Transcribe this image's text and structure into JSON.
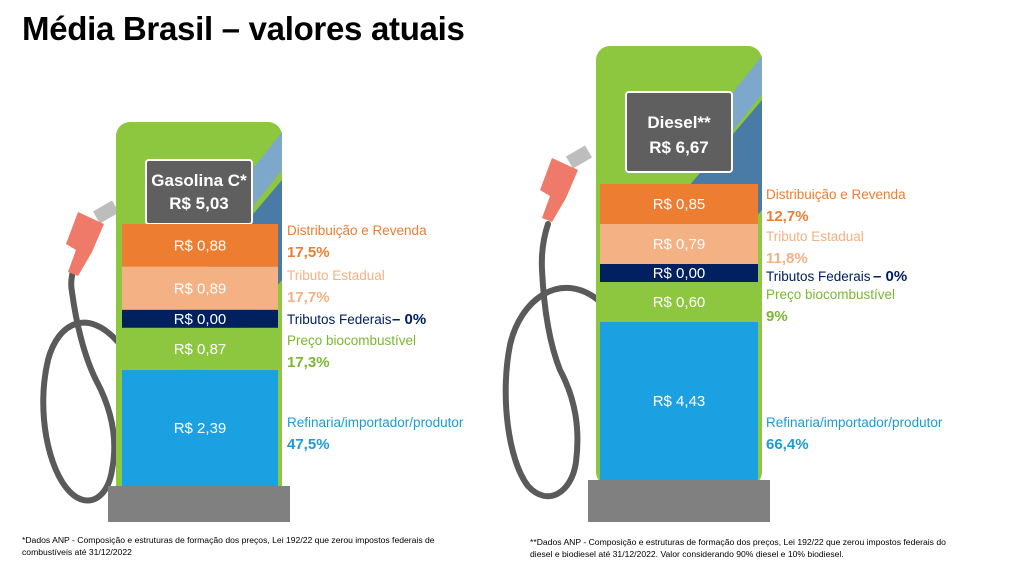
{
  "title": "Média Brasil – valores atuais",
  "chart_data": [
    {
      "type": "bar",
      "title": "Gasolina C*",
      "total": "R$ 5,03",
      "segments": [
        {
          "key": "distribuicao",
          "name": "Distribuição e Revenda",
          "value": 0.88,
          "value_label": "R$ 0,88",
          "pct_label": "17,5%",
          "color": "#ED7D31",
          "label_color": "#ED7D31"
        },
        {
          "key": "estadual",
          "name": "Tributo Estadual",
          "value": 0.89,
          "value_label": "R$ 0,89",
          "pct_label": "17,7%",
          "color": "#F4B183",
          "label_color": "#F4B183"
        },
        {
          "key": "federais",
          "name": "Tributos Federais",
          "value": 0.0,
          "value_label": "R$ 0,00",
          "pct_label": "– 0%",
          "color": "#002060",
          "label_color": "#002060"
        },
        {
          "key": "bio",
          "name": "Preço biocombustível",
          "value": 0.87,
          "value_label": "R$ 0,87",
          "pct_label": "17,3%",
          "color": "#8DC63F",
          "label_color": "#7AB733"
        },
        {
          "key": "refinaria",
          "name": "Refinaria/importador/produtor",
          "value": 2.39,
          "value_label": "R$ 2,39",
          "pct_label": "47,5%",
          "color": "#1BA1E2",
          "label_color": "#1B9BD7"
        }
      ]
    },
    {
      "type": "bar",
      "title": "Diesel**",
      "total": "R$ 6,67",
      "segments": [
        {
          "key": "distribuicao",
          "name": "Distribuição e Revenda",
          "value": 0.85,
          "value_label": "R$ 0,85",
          "pct_label": "12,7%",
          "color": "#ED7D31",
          "label_color": "#ED7D31"
        },
        {
          "key": "estadual",
          "name": "Tributo Estadual",
          "value": 0.79,
          "value_label": "R$ 0,79",
          "pct_label": "11,8%",
          "color": "#F4B183",
          "label_color": "#F4B183"
        },
        {
          "key": "federais",
          "name": "Tributos Federais",
          "value": 0.0,
          "value_label": "R$ 0,00",
          "pct_label": "– 0%",
          "color": "#002060",
          "label_color": "#002060"
        },
        {
          "key": "bio",
          "name": "Preço biocombustível",
          "value": 0.6,
          "value_label": "R$ 0,60",
          "pct_label": "9%",
          "color": "#8DC63F",
          "label_color": "#7AB733"
        },
        {
          "key": "refinaria",
          "name": "Refinaria/importador/produtor",
          "value": 4.43,
          "value_label": "R$ 4,43",
          "pct_label": "66,4%",
          "color": "#1BA1E2",
          "label_color": "#1B9BD7"
        }
      ]
    }
  ],
  "footnotes": {
    "gasolina": "*Dados ANP - Composição e estruturas de formação dos preços, Lei 192/22 que zerou impostos federais de combustíveis até 31/12/2022",
    "diesel": "**Dados ANP - Composição e estruturas de formação dos preços, Lei 192/22 que zerou impostos federais do diesel e biodiesel até 31/12/2022. Valor considerando 90% diesel e 10% biodiesel."
  },
  "colors": {
    "pump_green": "#8DC63F",
    "pump_stripe_dark": "#4A7BA6",
    "pump_stripe_light": "#7DA8CC",
    "box_gray": "#5F5F5F",
    "base_gray": "#808080",
    "hose_gray": "#5A5A5A",
    "nozzle": "#F07A6A"
  }
}
